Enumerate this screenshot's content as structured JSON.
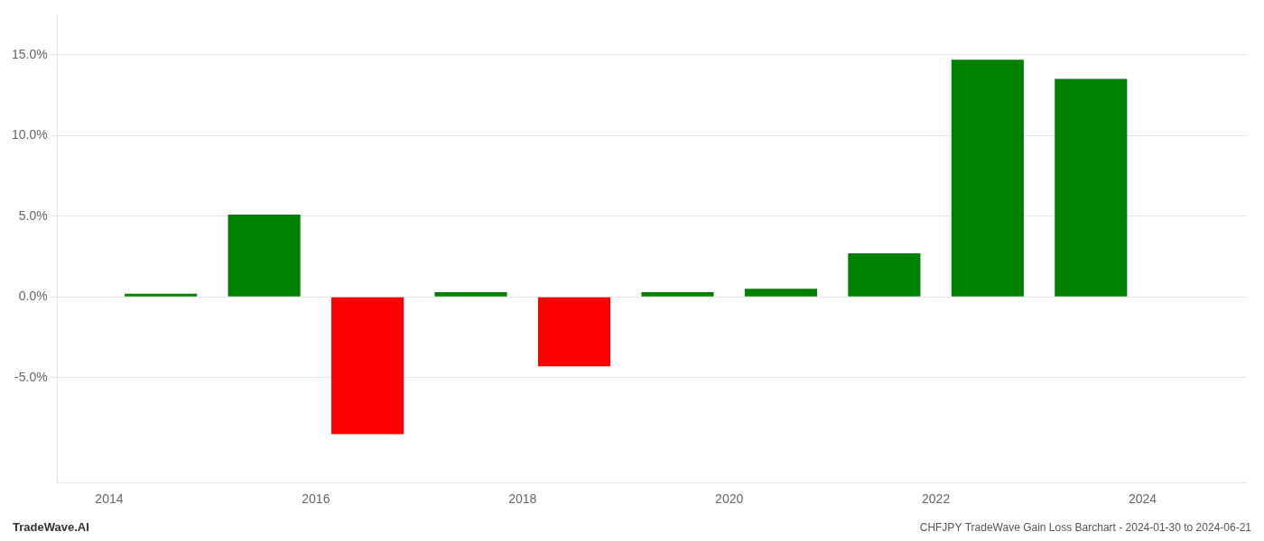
{
  "chart_data": {
    "type": "bar",
    "title": "CHFJPY TradeWave Gain Loss Barchart - 2024-01-30 to 2024-06-21",
    "annotations": [
      "TradeWave.AI"
    ],
    "x": [
      2014.5,
      2015.5,
      2016.5,
      2017.5,
      2018.5,
      2019.5,
      2020.5,
      2021.5,
      2022.5,
      2023.5
    ],
    "values": [
      0.002,
      0.051,
      -0.085,
      0.003,
      -0.043,
      0.003,
      0.005,
      0.027,
      0.147,
      0.135
    ],
    "colors": [
      "#008000",
      "#008000",
      "#ff0000",
      "#008000",
      "#ff0000",
      "#008000",
      "#008000",
      "#008000",
      "#008000",
      "#008000"
    ],
    "xlim": [
      2013.5,
      2025.0
    ],
    "xticks": [
      2014,
      2016,
      2018,
      2020,
      2022,
      2024
    ],
    "ylim": [
      -0.115,
      0.175
    ],
    "yticks": [
      {
        "value": -0.05,
        "label": "-5.0%"
      },
      {
        "value": 0.0,
        "label": "0.0%"
      },
      {
        "value": 0.05,
        "label": "5.0%"
      },
      {
        "value": 0.1,
        "label": "10.0%"
      },
      {
        "value": 0.15,
        "label": "15.0%"
      }
    ],
    "grid": true
  }
}
